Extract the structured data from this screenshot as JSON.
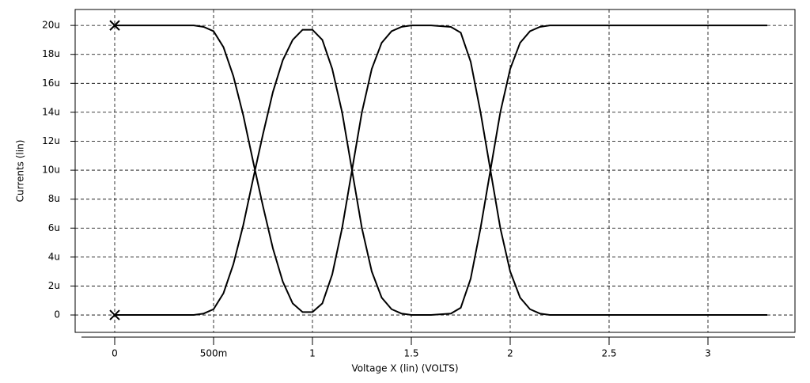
{
  "chart_data": {
    "type": "line",
    "x_label": "Voltage X (lin) (VOLTS)",
    "y_label": "Currents (lin)",
    "grid": true,
    "xlim": [
      -0.2,
      3.44
    ],
    "ylim": [
      -1.2,
      21.1
    ],
    "xticks": [
      0,
      {
        "value": 0.5,
        "label": "500m"
      },
      1,
      1.5,
      2,
      2.5,
      3
    ],
    "yticks": [
      0,
      {
        "value": 2,
        "label": "2u"
      },
      {
        "value": 4,
        "label": "4u"
      },
      {
        "value": 6,
        "label": "6u"
      },
      {
        "value": 8,
        "label": "8u"
      },
      {
        "value": 10,
        "label": "10u"
      },
      {
        "value": 12,
        "label": "12u"
      },
      {
        "value": 14,
        "label": "14u"
      },
      {
        "value": 16,
        "label": "16u"
      },
      {
        "value": 18,
        "label": "18u"
      },
      {
        "value": 20,
        "label": "20u"
      }
    ],
    "x": [
      0,
      0.1,
      0.2,
      0.3,
      0.4,
      0.45,
      0.5,
      0.55,
      0.6,
      0.65,
      0.7,
      0.75,
      0.8,
      0.85,
      0.9,
      0.95,
      1.0,
      1.05,
      1.1,
      1.15,
      1.2,
      1.25,
      1.3,
      1.35,
      1.4,
      1.45,
      1.5,
      1.6,
      1.7,
      1.75,
      1.8,
      1.85,
      1.9,
      1.95,
      2.0,
      2.05,
      2.1,
      2.15,
      2.2,
      2.5,
      3.0,
      3.3
    ],
    "series": [
      {
        "color": "#000000",
        "values": [
          20,
          20,
          20,
          20,
          20,
          19.9,
          19.6,
          18.5,
          16.5,
          13.8,
          10.6,
          7.5,
          4.6,
          2.3,
          0.8,
          0.2,
          0.2,
          0.8,
          2.8,
          6,
          10,
          14,
          17,
          18.8,
          19.6,
          19.9,
          20,
          20,
          19.9,
          19.5,
          17.5,
          14,
          10,
          6,
          3,
          1.2,
          0.4,
          0.1,
          0,
          0,
          0,
          0
        ]
      },
      {
        "color": "#000000",
        "values": [
          0,
          0,
          0,
          0,
          0,
          0.1,
          0.4,
          1.5,
          3.5,
          6.2,
          9.4,
          12.5,
          15.4,
          17.6,
          19,
          19.7,
          19.7,
          19,
          17,
          14,
          10,
          6,
          3,
          1.2,
          0.4,
          0.1,
          0,
          0,
          0.1,
          0.5,
          2.5,
          6,
          10,
          14,
          17,
          18.8,
          19.6,
          19.9,
          20,
          20,
          20,
          20
        ]
      }
    ]
  }
}
